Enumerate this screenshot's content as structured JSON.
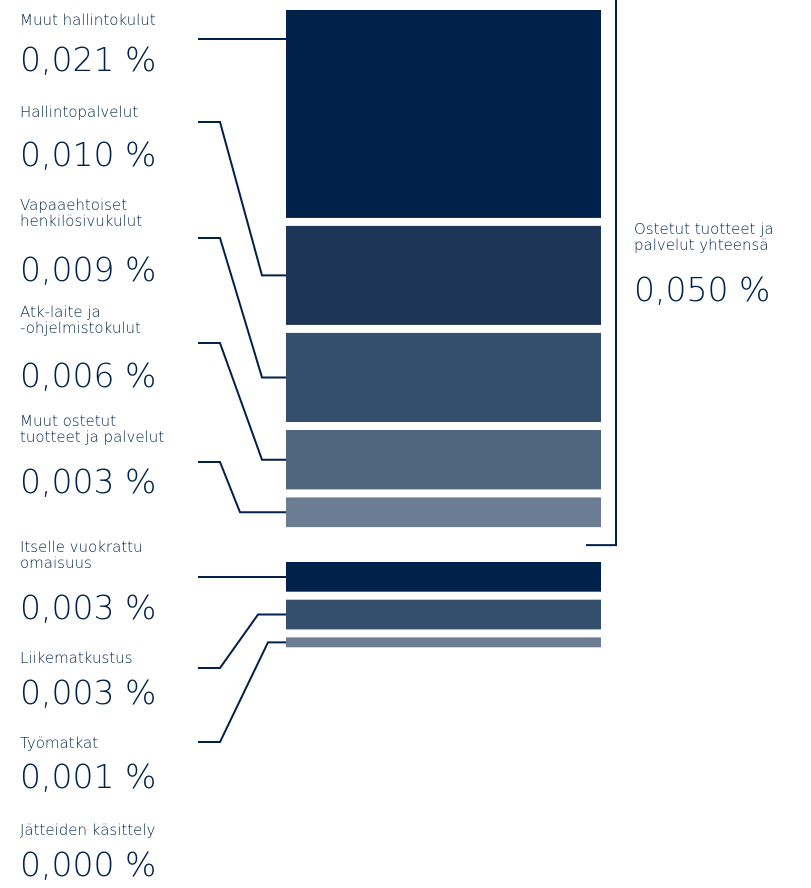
{
  "chart_data": {
    "type": "stacked-bar",
    "groups": [
      {
        "name": "Ostetut tuotteet ja\npalvelut yhteensä",
        "total": 0.05,
        "total_label": "0,050 %",
        "categories": [
          "Muut hallintokulut",
          "Hallintopalvelut",
          "Vapaaehtoiset\nhenkilösivukulut",
          "Atk-laite ja\n-ohjelmistokulut",
          "Muut ostetut\ntuotteet ja palvelut"
        ],
        "values": [
          0.021,
          0.01,
          0.009,
          0.006,
          0.003
        ],
        "value_labels": [
          "0,021 %",
          "0,010 %",
          "0,009 %",
          "0,006 %",
          "0,003 %"
        ],
        "colors": [
          "#00214a",
          "#1d3557",
          "#344f6e",
          "#50657f",
          "#6b7c93"
        ]
      },
      {
        "categories": [
          "Itselle vuokrattu\nomaisuus",
          "Liikematkustus",
          "Työmatkat",
          "Jätteiden käsittely"
        ],
        "values": [
          0.003,
          0.003,
          0.001,
          0.0
        ],
        "value_labels": [
          "0,003 %",
          "0,003 %",
          "0,001 %",
          "0,000 %"
        ],
        "colors": [
          "#00214a",
          "#344f6e",
          "#6b7c93",
          "#8a98ab"
        ]
      }
    ]
  }
}
